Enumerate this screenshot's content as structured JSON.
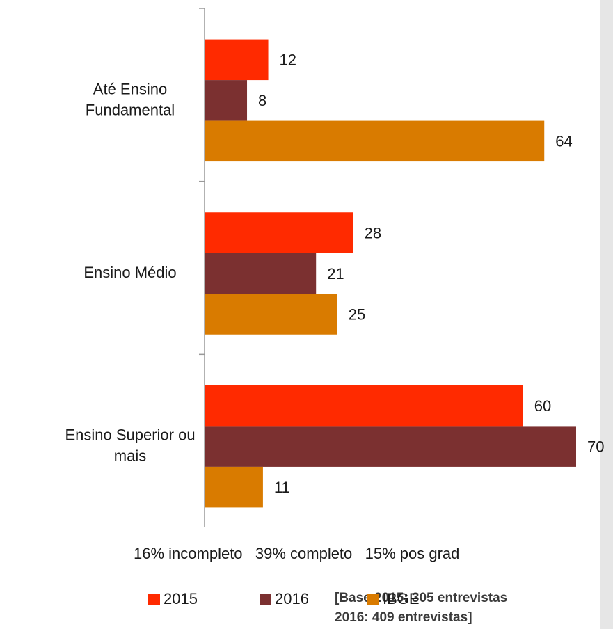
{
  "chart_data": {
    "type": "bar",
    "orientation": "horizontal",
    "categories": [
      "Até Ensino Fundamental",
      "Ensino Médio",
      "Ensino Superior ou mais"
    ],
    "series": [
      {
        "name": "2015",
        "color": "#ff2a00",
        "values": [
          12,
          28,
          60
        ]
      },
      {
        "name": "2016",
        "color": "#7b3030",
        "values": [
          8,
          21,
          70
        ]
      },
      {
        "name": "IBGE",
        "color": "#d97b00",
        "values": [
          64,
          25,
          11
        ]
      }
    ],
    "annotation": "16% incompleto   39% completo   15% pos grad",
    "note": [
      "[Base 2015:  305 entrevistas",
      "2016: 409 entrevistas]"
    ],
    "legend": "bottom"
  }
}
